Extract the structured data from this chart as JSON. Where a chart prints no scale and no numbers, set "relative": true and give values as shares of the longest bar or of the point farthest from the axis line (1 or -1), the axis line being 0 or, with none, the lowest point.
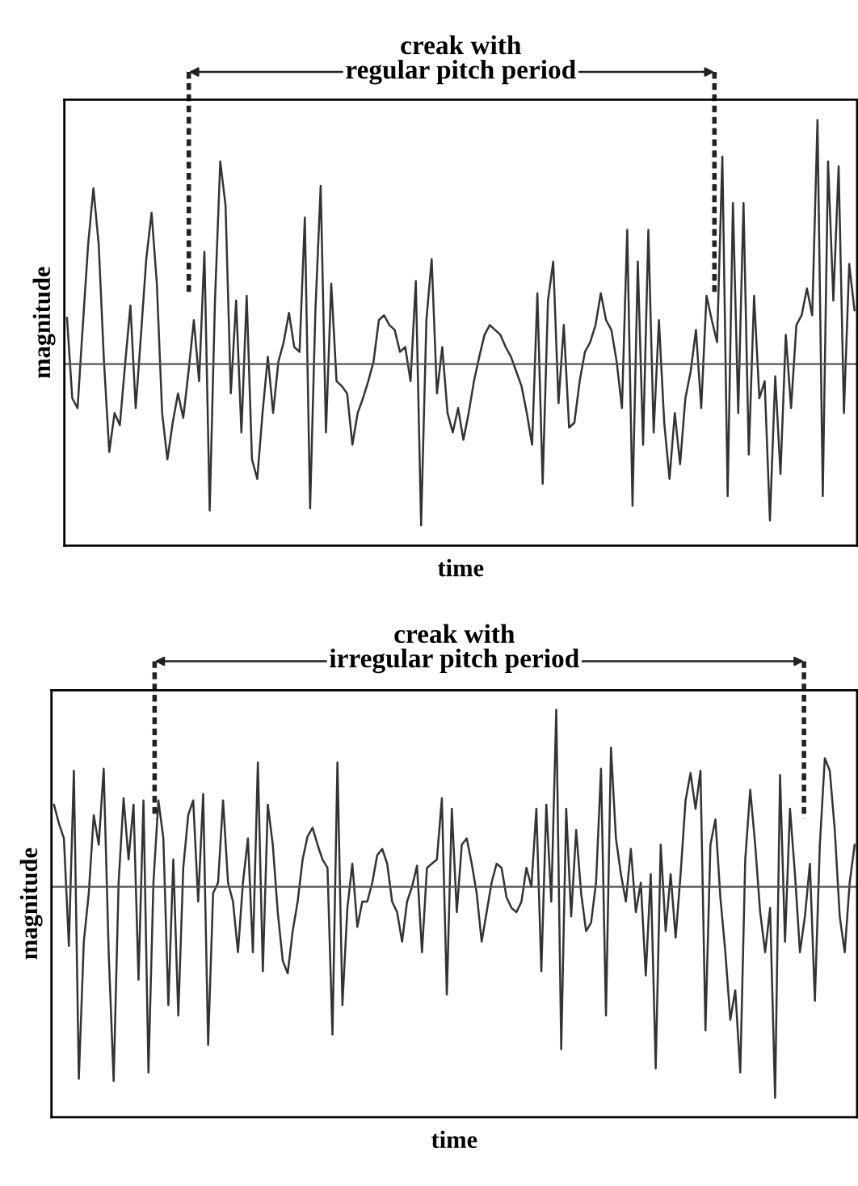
{
  "chart_data": [
    {
      "type": "line",
      "relative": true,
      "title": "creak with\nregular pitch period",
      "xlabel": "time",
      "ylabel": "magnitude",
      "categories": [
        null,
        null,
        null,
        null,
        null,
        null,
        null,
        null,
        null,
        null,
        null,
        null,
        null,
        null,
        null,
        null,
        null,
        null,
        null,
        null,
        null,
        null,
        null,
        null,
        null,
        null,
        null,
        null,
        null,
        null,
        null,
        null,
        null,
        null,
        null,
        null,
        null,
        null,
        null,
        null,
        null,
        null,
        null,
        null,
        null,
        null,
        null,
        null,
        null,
        null,
        null,
        null,
        null,
        null,
        null,
        null,
        null,
        null,
        null,
        null,
        null,
        null,
        null,
        null,
        null,
        null,
        null,
        null,
        null,
        null,
        null,
        null,
        null,
        null,
        null,
        null,
        null,
        null,
        null,
        null,
        null,
        null,
        null,
        null,
        null,
        null,
        null,
        null,
        null,
        null,
        null,
        null,
        null,
        null,
        null,
        null,
        null,
        null,
        null,
        null,
        null,
        null,
        null,
        null,
        null,
        null,
        null,
        null,
        null,
        null,
        null,
        null,
        null,
        null,
        null,
        null,
        null,
        null,
        null,
        null,
        null,
        null,
        null,
        null,
        null,
        null,
        null,
        null,
        null,
        null,
        null,
        null,
        null,
        null,
        null,
        null,
        null,
        null,
        null,
        null,
        null,
        null,
        null,
        null,
        null,
        null,
        null,
        null,
        null,
        null
      ],
      "series": [
        {
          "color": "#333333",
          "values": [
            0.19,
            -0.14,
            -0.18,
            0.16,
            0.49,
            0.72,
            0.49,
            0.01,
            -0.36,
            -0.2,
            -0.25,
            0,
            0.24,
            -0.18,
            0.12,
            0.43,
            0.62,
            0.33,
            -0.2,
            -0.39,
            -0.24,
            -0.12,
            -0.22,
            -0.03,
            0.18,
            -0.07,
            0.46,
            -0.6,
            0.26,
            0.83,
            0.65,
            -0.12,
            0.26,
            -0.28,
            0.28,
            -0.39,
            -0.47,
            -0.2,
            0.03,
            -0.2,
            0.01,
            0.09,
            0.21,
            0.07,
            0.05,
            0.6,
            -0.59,
            0.22,
            0.73,
            -0.28,
            0.33,
            -0.07,
            -0.09,
            -0.12,
            -0.33,
            -0.2,
            -0.14,
            -0.07,
            0.01,
            0.18,
            0.2,
            0.16,
            0.14,
            0.05,
            0.07,
            -0.07,
            0.34,
            -0.66,
            0.18,
            0.43,
            -0.12,
            0.07,
            -0.2,
            -0.28,
            -0.18,
            -0.31,
            -0.2,
            -0.07,
            0.03,
            0.12,
            0.16,
            0.14,
            0.12,
            0.07,
            0.03,
            -0.03,
            -0.09,
            -0.2,
            -0.33,
            0.29,
            -0.49,
            0.26,
            0.42,
            -0.16,
            0.16,
            -0.26,
            -0.24,
            -0.07,
            0.05,
            0.09,
            0.16,
            0.29,
            0.18,
            0.14,
            0.01,
            -0.18,
            0.55,
            -0.58,
            0.42,
            -0.33,
            0.55,
            -0.28,
            0.18,
            -0.24,
            -0.47,
            -0.2,
            -0.41,
            -0.14,
            -0.03,
            0.14,
            -0.18,
            0.28,
            0.18,
            0.09,
            0.85,
            -0.54,
            0.66,
            -0.2,
            0.66,
            -0.37,
            0.28,
            -0.14,
            -0.07,
            -0.64,
            -0.05,
            -0.45,
            0.12,
            -0.18,
            0.16,
            0.2,
            0.31,
            0.2,
            1.0,
            -0.54,
            0.83,
            0.26,
            0.81,
            -0.2,
            0.41,
            0.22
          ]
        }
      ],
      "ref_lines": [
        {
          "axis": "y",
          "value": 0,
          "color": "#555555"
        }
      ]
    },
    {
      "type": "line",
      "relative": true,
      "title": "creak with\nirregular pitch period",
      "xlabel": "time",
      "ylabel": "magnitude",
      "categories": [
        null,
        null,
        null,
        null,
        null,
        null,
        null,
        null,
        null,
        null,
        null,
        null,
        null,
        null,
        null,
        null,
        null,
        null,
        null,
        null,
        null,
        null,
        null,
        null,
        null,
        null,
        null,
        null,
        null,
        null,
        null,
        null,
        null,
        null,
        null,
        null,
        null,
        null,
        null,
        null,
        null,
        null,
        null,
        null,
        null,
        null,
        null,
        null,
        null,
        null,
        null,
        null,
        null,
        null,
        null,
        null,
        null,
        null,
        null,
        null,
        null,
        null,
        null,
        null,
        null,
        null,
        null,
        null,
        null,
        null,
        null,
        null,
        null,
        null,
        null,
        null,
        null,
        null,
        null,
        null,
        null,
        null,
        null,
        null,
        null,
        null,
        null,
        null,
        null,
        null,
        null,
        null,
        null,
        null,
        null,
        null,
        null,
        null,
        null,
        null,
        null,
        null,
        null,
        null,
        null,
        null,
        null,
        null,
        null,
        null,
        null,
        null,
        null,
        null,
        null,
        null,
        null,
        null,
        null,
        null,
        null,
        null,
        null,
        null,
        null,
        null,
        null,
        null,
        null,
        null,
        null,
        null,
        null,
        null,
        null,
        null,
        null,
        null,
        null,
        null,
        null,
        null,
        null,
        null,
        null,
        null,
        null,
        null,
        null,
        null,
        null,
        null,
        null,
        null,
        null,
        null,
        null,
        null,
        null,
        null,
        null,
        null
      ],
      "series": [
        {
          "color": "#333333",
          "values": [
            0.39,
            0.3,
            0.23,
            -0.28,
            0.55,
            -0.91,
            -0.26,
            -0.03,
            0.34,
            0.2,
            0.56,
            -0.31,
            -0.92,
            0.02,
            0.42,
            0.13,
            0.39,
            -0.44,
            0.41,
            -0.88,
            0.02,
            0.41,
            0.23,
            -0.56,
            0.13,
            -0.61,
            0.09,
            0.34,
            0.41,
            -0.07,
            0.44,
            -0.75,
            -0.03,
            0.02,
            0.41,
            0.02,
            -0.07,
            -0.31,
            0.02,
            0.23,
            -0.31,
            0.59,
            -0.4,
            0.39,
            0.2,
            -0.12,
            -0.35,
            -0.41,
            -0.21,
            -0.07,
            0.13,
            0.24,
            0.28,
            0.2,
            0.13,
            0.09,
            -0.7,
            0.59,
            -0.56,
            -0.1,
            0.11,
            -0.19,
            -0.07,
            -0.07,
            0.02,
            0.15,
            0.18,
            0.11,
            -0.07,
            -0.12,
            -0.26,
            -0.07,
            0.0,
            0.1,
            -0.31,
            0.09,
            0.11,
            0.13,
            0.42,
            -0.51,
            0.37,
            -0.12,
            0.2,
            0.23,
            0.11,
            -0.03,
            -0.26,
            -0.12,
            0.02,
            0.11,
            0.09,
            -0.05,
            -0.1,
            -0.12,
            -0.07,
            0.09,
            0.0,
            0.37,
            -0.4,
            0.39,
            -0.07,
            0.84,
            -0.77,
            0.37,
            -0.14,
            0.27,
            -0.03,
            -0.21,
            -0.17,
            0.02,
            0.56,
            -0.61,
            0.66,
            0.23,
            0.06,
            -0.07,
            0.18,
            -0.12,
            0.02,
            -0.42,
            0.06,
            -0.86,
            0.2,
            -0.21,
            0.06,
            -0.24,
            0.06,
            0.41,
            0.54,
            0.37,
            0.55,
            -0.68,
            0.2,
            0.32,
            -0.05,
            -0.31,
            -0.63,
            -0.49,
            -0.88,
            0.13,
            0.46,
            0.2,
            -0.12,
            -0.31,
            -0.1,
            -1.0,
            0.53,
            -0.26,
            0.37,
            0.06,
            -0.31,
            -0.14,
            0.11,
            -0.54,
            0.2,
            0.61,
            0.55,
            0.27,
            -0.14,
            -0.31,
            0.02,
            0.2
          ]
        }
      ],
      "ref_lines": [
        {
          "axis": "y",
          "value": 0,
          "color": "#555555"
        }
      ]
    }
  ]
}
